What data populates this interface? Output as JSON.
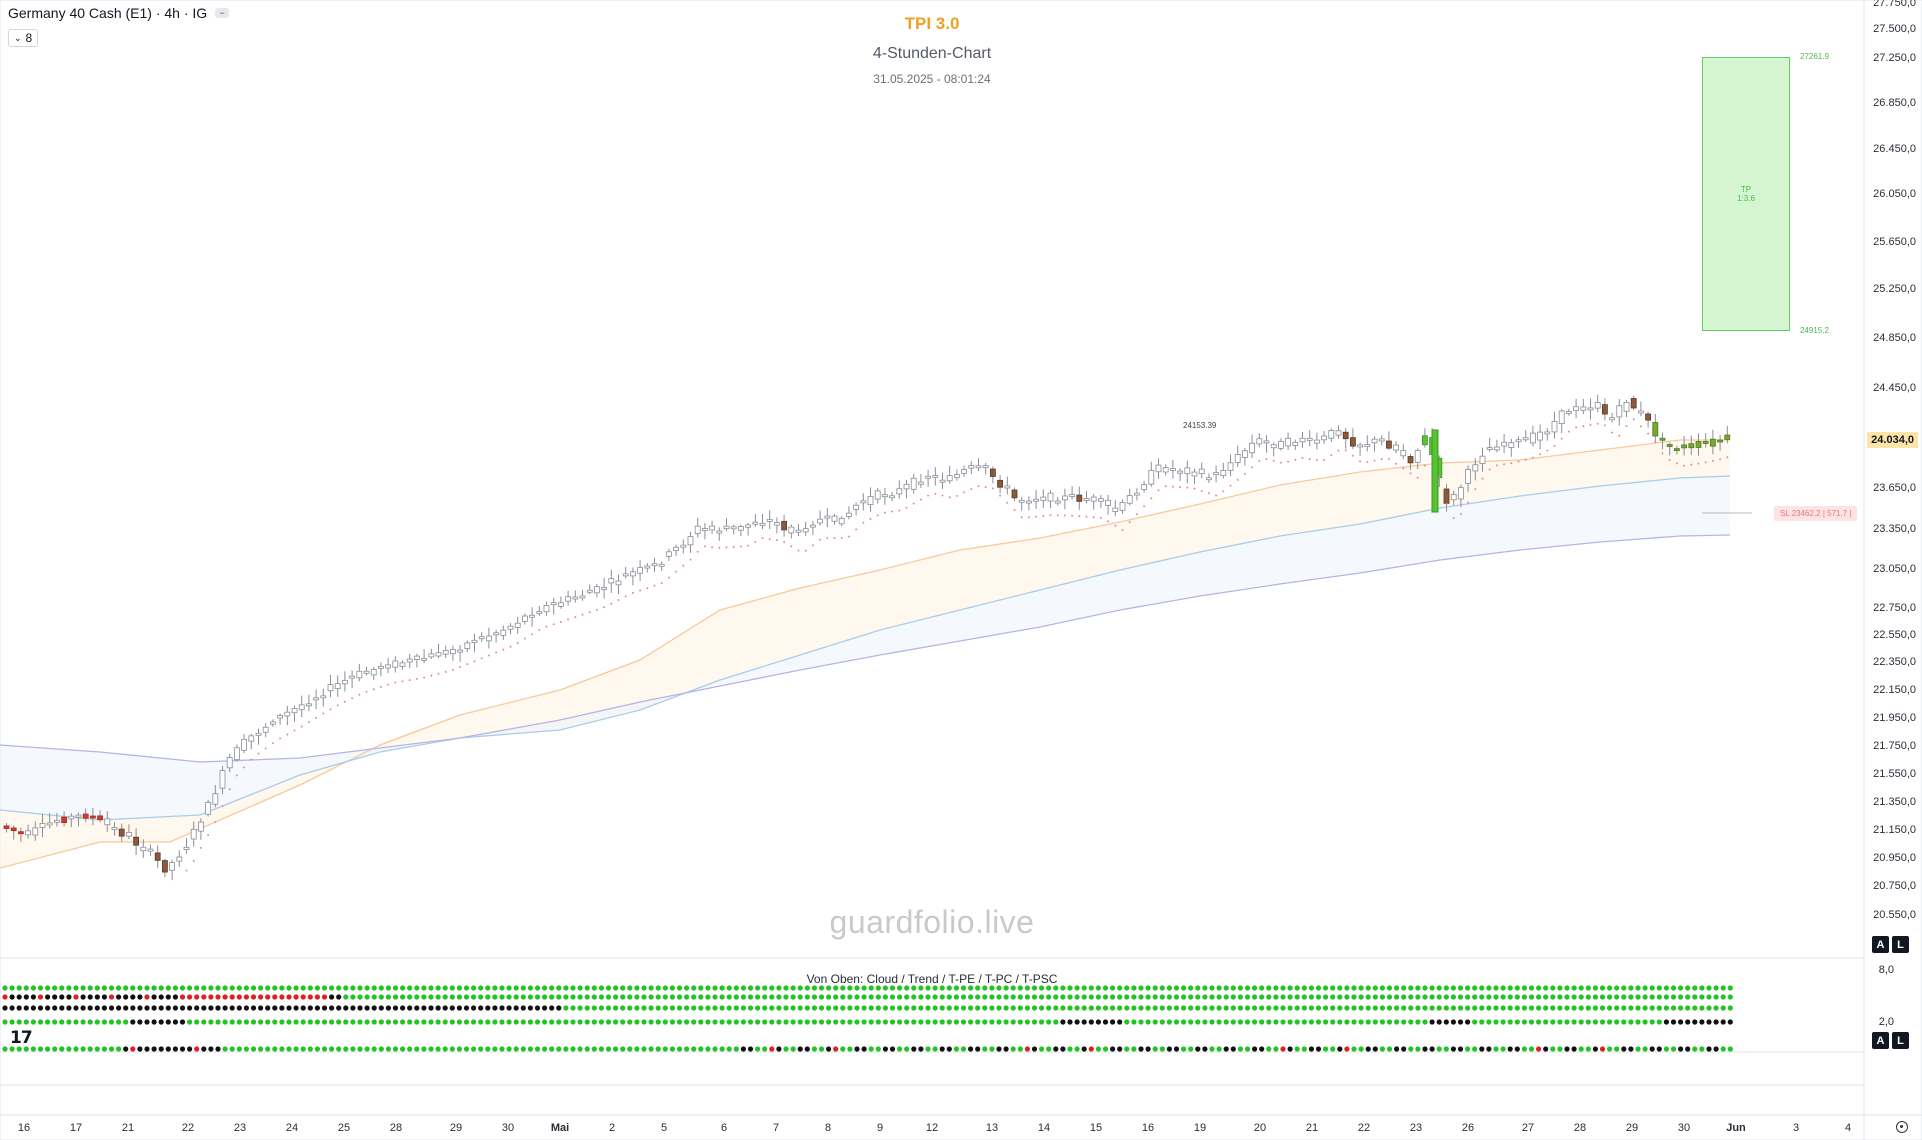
{
  "header": {
    "symbol_line": "Germany 40 Cash (E1) · 4h · IG",
    "indicator_count": "8"
  },
  "chart_titles": {
    "main": "TPI 3.0",
    "sub": "4-Stunden-Chart",
    "datetime": "31.05.2025 - 08:01:24"
  },
  "watermark": "guardfolio.live",
  "price_axis": {
    "labels": [
      "27.750,0",
      "27.500,0",
      "27.250,0",
      "26.850,0",
      "26.450,0",
      "26.050,0",
      "25.650,0",
      "25.250,0",
      "24.850,0",
      "24.450,0",
      "23.650,0",
      "23.350,0",
      "23.050,0",
      "22.750,0",
      "22.550,0",
      "22.350,0",
      "22.150,0",
      "21.950,0",
      "21.750,0",
      "21.550,0",
      "21.350,0",
      "21.150,0",
      "20.950,0",
      "20.750,0",
      "20.550,0"
    ],
    "last_price": "24.034,0"
  },
  "time_axis": {
    "labels": [
      "16",
      "17",
      "21",
      "22",
      "23",
      "24",
      "25",
      "28",
      "29",
      "30",
      "Mai",
      "2",
      "5",
      "6",
      "7",
      "8",
      "9",
      "12",
      "13",
      "14",
      "15",
      "16",
      "19",
      "20",
      "21",
      "22",
      "23",
      "26",
      "27",
      "28",
      "29",
      "30",
      "Jun",
      "3",
      "4"
    ]
  },
  "annotations": {
    "tp_label": "TP",
    "tp_ratio": "1:3.6",
    "tp_top_price": "27261.9",
    "tp_bottom_price": "24915.2",
    "sl_label": "SL 23462.2 | 571.7 |",
    "high_label": "24153.39"
  },
  "indicator_panel": {
    "title": "Von Oben: Cloud / Trend / T-PE / T-PC / T-PSC",
    "scale_top": "8,0",
    "scale_mid": "2,0"
  },
  "badges": {
    "auto": "A",
    "log": "L"
  },
  "colors": {
    "up": "#ffffff",
    "down_brown": "#8b5a3c",
    "bull_green": "#55c333",
    "bear_red": "#d63a2f",
    "dot_green": "#22c322",
    "dot_red": "#e02020",
    "dot_black": "#111111",
    "tp_green": "#5fcf5f",
    "title_orange": "#f0a020"
  },
  "icons": {
    "tv_logo": "tradingview-logo",
    "settings": "gear-icon"
  }
}
